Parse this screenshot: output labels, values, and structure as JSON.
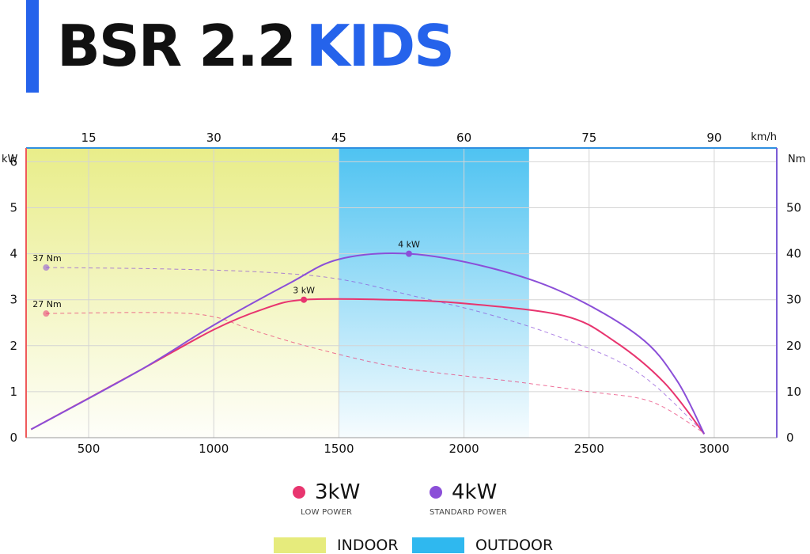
{
  "header": {
    "title_main": "BSR 2.2",
    "title_accent": "KIDS"
  },
  "colors": {
    "accent": "#2563eb",
    "low_power": "#e8356f",
    "standard_power": "#8b4fd8",
    "indoor": "#e6eb7c",
    "outdoor": "#2fb8ef"
  },
  "legend": {
    "series": [
      {
        "label": "3kW",
        "sublabel": "LOW POWER",
        "color": "#e8356f"
      },
      {
        "label": "4kW",
        "sublabel": "STANDARD POWER",
        "color": "#8b4fd8"
      }
    ],
    "zones": [
      {
        "label": "INDOOR",
        "color": "#e6eb7c"
      },
      {
        "label": "OUTDOOR",
        "color": "#2fb8ef"
      }
    ]
  },
  "chart_data": {
    "type": "line",
    "x_axis": {
      "unit": "",
      "range": [
        250,
        3250
      ],
      "ticks": [
        500,
        1000,
        1500,
        2000,
        2500,
        3000
      ],
      "tick_labels": [
        "500",
        "1000",
        "1500",
        "2000",
        "2500",
        "3000"
      ]
    },
    "x2_axis": {
      "unit": "km/h",
      "ticks_at_x": [
        500,
        1000,
        1500,
        2000,
        2500,
        3000
      ],
      "tick_labels": [
        "15",
        "30",
        "45",
        "60",
        "75",
        "90"
      ]
    },
    "y_axis": {
      "unit": "kW",
      "range": [
        0,
        6.3
      ],
      "ticks": [
        0,
        1,
        2,
        3,
        4,
        5,
        6
      ],
      "tick_labels": [
        "0",
        "1",
        "2",
        "3",
        "4",
        "5",
        "6"
      ]
    },
    "y2_axis": {
      "unit": "Nm",
      "range": [
        0,
        63
      ],
      "ticks": [
        0,
        10,
        20,
        30,
        40,
        50
      ],
      "tick_labels": [
        "0",
        "10",
        "20",
        "30",
        "40",
        "50"
      ]
    },
    "grid": true,
    "zones": [
      {
        "name": "INDOOR",
        "x_range": [
          250,
          1500
        ],
        "color": "#e6eb7c"
      },
      {
        "name": "OUTDOOR",
        "x_range": [
          1500,
          2260
        ],
        "color": "#2fb8ef"
      }
    ],
    "series": [
      {
        "name": "3kW",
        "axis": "kW",
        "style": "solid",
        "color": "#e8356f",
        "points": [
          [
            270,
            0.18
          ],
          [
            700,
            1.45
          ],
          [
            1000,
            2.35
          ],
          [
            1200,
            2.8
          ],
          [
            1360,
            3.0
          ],
          [
            1700,
            3.0
          ],
          [
            2000,
            2.92
          ],
          [
            2400,
            2.65
          ],
          [
            2600,
            2.1
          ],
          [
            2800,
            1.2
          ],
          [
            2960,
            0.08
          ]
        ],
        "peak": {
          "x": 1360,
          "y": 3,
          "label": "3 kW"
        }
      },
      {
        "name": "4kW",
        "axis": "kW",
        "style": "solid",
        "color": "#8b4fd8",
        "points": [
          [
            270,
            0.18
          ],
          [
            700,
            1.45
          ],
          [
            1000,
            2.45
          ],
          [
            1300,
            3.35
          ],
          [
            1500,
            3.88
          ],
          [
            1780,
            4.0
          ],
          [
            2100,
            3.7
          ],
          [
            2400,
            3.15
          ],
          [
            2700,
            2.2
          ],
          [
            2850,
            1.25
          ],
          [
            2960,
            0.08
          ]
        ],
        "peak": {
          "x": 1780,
          "y": 4,
          "label": "4 kW"
        }
      },
      {
        "name": "3kW torque",
        "axis": "Nm",
        "style": "dashed",
        "color": "#e8356f",
        "points": [
          [
            330,
            27
          ],
          [
            800,
            27.2
          ],
          [
            1000,
            26.3
          ],
          [
            1150,
            23.5
          ],
          [
            1400,
            19.5
          ],
          [
            1750,
            15.2
          ],
          [
            2200,
            12.2
          ],
          [
            2500,
            10
          ],
          [
            2750,
            7.8
          ],
          [
            2960,
            1
          ]
        ],
        "start": {
          "x": 330,
          "y": 27,
          "label": "27 Nm"
        }
      },
      {
        "name": "4kW torque",
        "axis": "Nm",
        "style": "dashed",
        "color": "#8b4fd8",
        "points": [
          [
            330,
            37
          ],
          [
            800,
            36.7
          ],
          [
            1200,
            36
          ],
          [
            1500,
            34.5
          ],
          [
            1800,
            30.8
          ],
          [
            2100,
            26.8
          ],
          [
            2400,
            21.5
          ],
          [
            2700,
            14
          ],
          [
            2960,
            1
          ]
        ],
        "start": {
          "x": 330,
          "y": 37,
          "label": "37 Nm"
        }
      }
    ]
  }
}
